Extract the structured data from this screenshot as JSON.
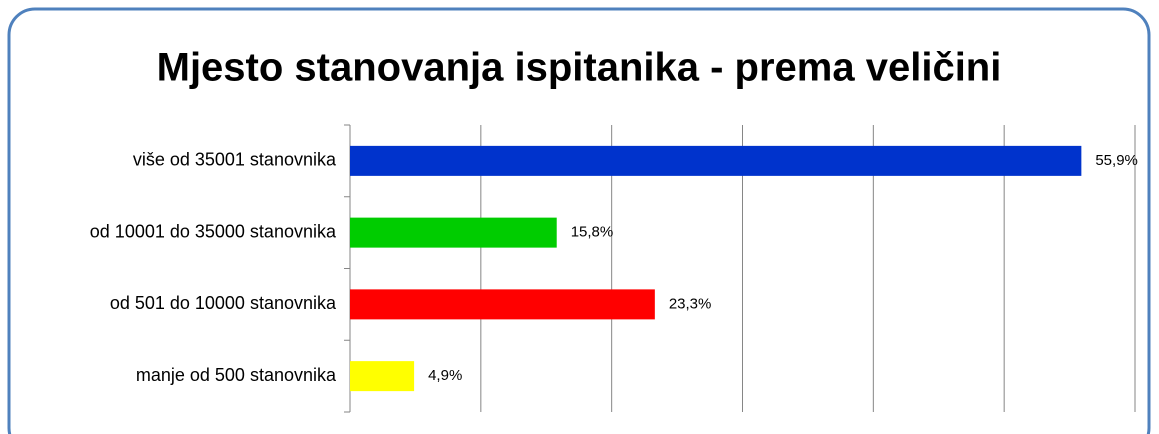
{
  "chart_data": {
    "type": "bar",
    "orientation": "horizontal",
    "title": "Mjesto stanovanja ispitanika - prema veličini",
    "categories": [
      "više od 35001 stanovnika",
      "od 10001 do 35000 stanovnika",
      "od 501 do 10000 stanovnika",
      "manje od 500 stanovnika"
    ],
    "values": [
      55.9,
      15.8,
      23.3,
      4.9
    ],
    "value_labels": [
      "55,9%",
      "15,8%",
      "23,3%",
      "4,9%"
    ],
    "colors": [
      "#0033cc",
      "#00cc00",
      "#ff0000",
      "#ffff00"
    ],
    "xlim": [
      0,
      60
    ],
    "xticks": [
      0,
      10,
      20,
      30,
      40,
      50,
      60
    ],
    "grid": true
  }
}
